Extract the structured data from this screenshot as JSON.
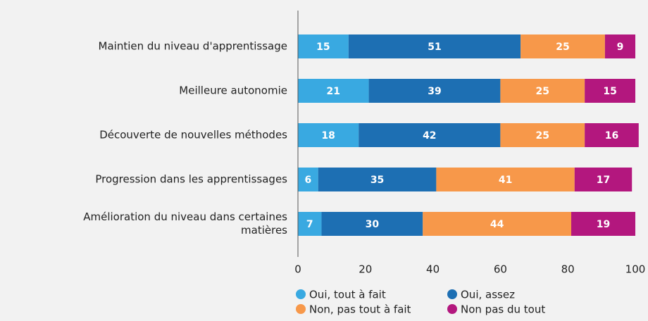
{
  "chart_data": {
    "type": "stacked_bar_horizontal",
    "categories": [
      "Maintien du niveau d'apprentissage",
      "Meilleure autonomie",
      "Découverte de nouvelles méthodes",
      "Progression dans les apprentissages",
      "Amélioration du niveau dans certaines matières"
    ],
    "series": [
      {
        "name": "Oui, tout à fait",
        "color": "#39a9e1",
        "values": [
          15,
          21,
          18,
          6,
          7
        ]
      },
      {
        "name": "Oui, assez",
        "color": "#1d6fb3",
        "values": [
          51,
          39,
          42,
          35,
          30
        ]
      },
      {
        "name": "Non, pas tout à fait",
        "color": "#f7984a",
        "values": [
          25,
          25,
          25,
          41,
          44
        ]
      },
      {
        "name": "Non pas du tout",
        "color": "#b3177e",
        "values": [
          9,
          15,
          16,
          17,
          19
        ]
      }
    ],
    "xlim": [
      0,
      100
    ],
    "xticks": [
      0,
      20,
      40,
      60,
      80,
      100
    ]
  }
}
